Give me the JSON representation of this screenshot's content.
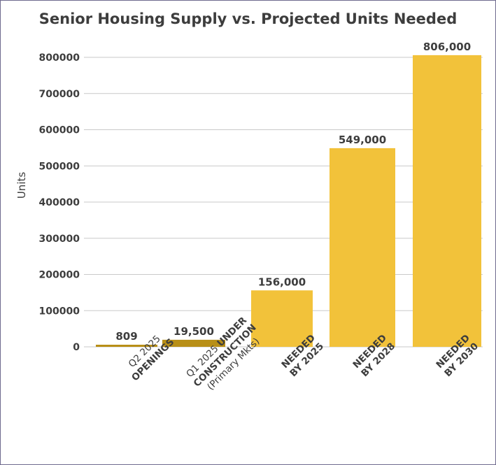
{
  "chart_data": {
    "type": "bar",
    "title": "Senior Housing Supply vs. Projected Units Needed",
    "ylabel": "Units",
    "xlabel": "",
    "ylim": [
      0,
      806000
    ],
    "yticks": [
      0,
      100000,
      200000,
      300000,
      400000,
      500000,
      600000,
      700000,
      800000
    ],
    "ytick_labels": [
      "0",
      "100000",
      "200000",
      "300000",
      "400000",
      "500000",
      "600000",
      "700000",
      "800000"
    ],
    "grid": true,
    "categories": [
      "Q2 2025 OPENINGS",
      "Q1 2025 UNDER CONSTRUCTION (Primary Mkts)",
      "NEEDED BY 2025",
      "NEEDED BY 2028",
      "NEEDED BY 2030"
    ],
    "category_label_lines": [
      [
        {
          "text": "Q2 2025",
          "bold": false
        },
        {
          "text": "OPENINGS",
          "bold": true
        }
      ],
      [
        {
          "text": "Q1 2025 ",
          "bold": false,
          "inline": "UNDER",
          "inline_bold": true
        },
        {
          "text": "CONSTRUCTION",
          "bold": true
        },
        {
          "text": "(Primary Mkts)",
          "bold": false
        }
      ],
      [
        {
          "text": "NEEDED",
          "bold": true
        },
        {
          "text": "BY 2025",
          "bold": true
        }
      ],
      [
        {
          "text": "NEEDED",
          "bold": true
        },
        {
          "text": "BY 2028",
          "bold": true
        }
      ],
      [
        {
          "text": "NEEDED",
          "bold": true
        },
        {
          "text": "BY 2030",
          "bold": true
        }
      ]
    ],
    "values": [
      809,
      19500,
      156000,
      549000,
      806000
    ],
    "data_labels": [
      "809",
      "19,500",
      "156,000",
      "549,000",
      "806,000"
    ],
    "colors": [
      "#b88f17",
      "#b88f17",
      "#f2c23a",
      "#f2c23a",
      "#f2c23a"
    ],
    "grid_color": "#c9c9c9",
    "text_color": "#3d3d3d"
  }
}
